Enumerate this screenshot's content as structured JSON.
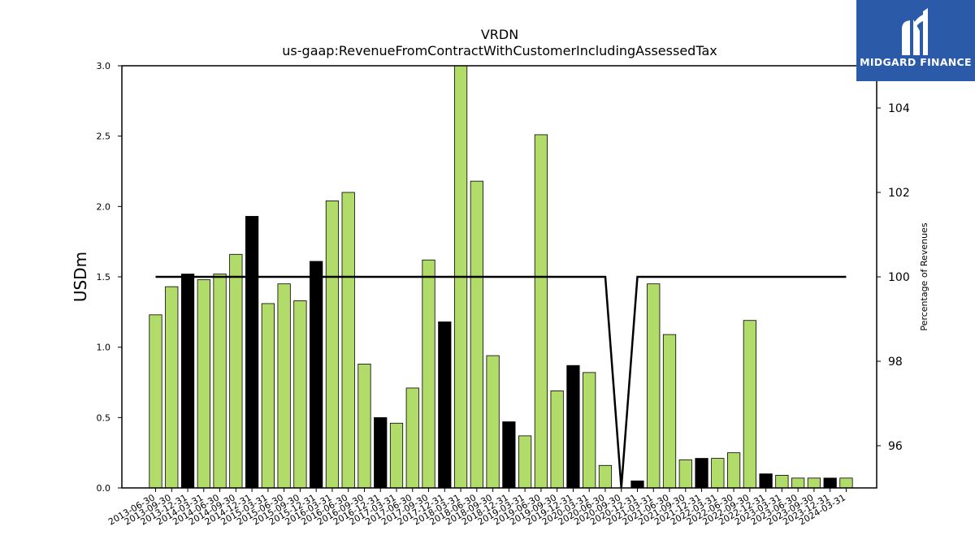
{
  "chart_data": {
    "type": "bar",
    "title": "VRDN",
    "subtitle": "us-gaap:RevenueFromContractWithCustomerIncludingAssessedTax",
    "ylabel": "USDm",
    "y2label": "Percentage of Revenues",
    "ylim": [
      0,
      3.0
    ],
    "y2lim": [
      95.0,
      105.0
    ],
    "yticks": [
      "0.0",
      "0.5",
      "1.0",
      "1.5",
      "2.0",
      "2.5",
      "3.0"
    ],
    "y2ticks": [
      "96",
      "98",
      "100",
      "102",
      "104"
    ],
    "categories": [
      "2013-06-30",
      "2013-09-30",
      "2013-12-31",
      "2014-03-31",
      "2014-06-30",
      "2014-09-30",
      "2014-12-31",
      "2015-03-31",
      "2015-06-30",
      "2015-09-30",
      "2015-12-31",
      "2016-03-31",
      "2016-06-30",
      "2016-09-30",
      "2016-12-31",
      "2017-03-31",
      "2017-06-30",
      "2017-09-30",
      "2017-12-31",
      "2018-03-31",
      "2018-06-30",
      "2018-09-30",
      "2018-12-31",
      "2019-03-31",
      "2019-06-30",
      "2019-09-30",
      "2019-12-31",
      "2020-03-31",
      "2020-06-30",
      "2020-09-30",
      "2020-12-31",
      "2021-03-31",
      "2021-06-30",
      "2021-09-30",
      "2021-12-31",
      "2022-03-31",
      "2022-06-30",
      "2022-09-30",
      "2022-12-31",
      "2023-03-31",
      "2023-06-30",
      "2023-09-30",
      "2023-12-31",
      "2024-03-31"
    ],
    "values": [
      1.23,
      1.43,
      1.52,
      1.48,
      1.52,
      1.66,
      1.93,
      1.31,
      1.45,
      1.33,
      1.61,
      2.04,
      2.1,
      0.88,
      0.5,
      0.46,
      0.71,
      1.62,
      1.18,
      3.01,
      2.18,
      0.94,
      0.47,
      0.37,
      2.51,
      0.69,
      0.87,
      0.82,
      0.16,
      0.0,
      0.05,
      1.45,
      1.09,
      0.2,
      0.21,
      0.21,
      0.25,
      1.19,
      0.1,
      0.09,
      0.07,
      0.07,
      0.07,
      0.07
    ],
    "highlight": [
      false,
      false,
      true,
      false,
      false,
      false,
      true,
      false,
      false,
      false,
      true,
      false,
      false,
      false,
      true,
      false,
      false,
      false,
      true,
      false,
      false,
      false,
      true,
      false,
      false,
      false,
      true,
      false,
      false,
      false,
      true,
      false,
      false,
      false,
      true,
      false,
      false,
      false,
      true,
      false,
      false,
      false,
      true,
      false
    ],
    "percent_series": [
      100,
      100,
      100,
      100,
      100,
      100,
      100,
      100,
      100,
      100,
      100,
      100,
      100,
      100,
      100,
      100,
      100,
      100,
      100,
      100,
      100,
      100,
      100,
      100,
      100,
      100,
      100,
      100,
      100,
      null,
      100,
      100,
      100,
      100,
      100,
      100,
      100,
      100,
      100,
      100,
      100,
      100,
      100,
      100
    ],
    "colors": {
      "bar": "#b2dc69",
      "highlight_bar": "#000000",
      "line": "#000000"
    },
    "grid": false
  },
  "logo": {
    "text": "MIDGARD FINANCE",
    "color": "#2a5aa8"
  }
}
